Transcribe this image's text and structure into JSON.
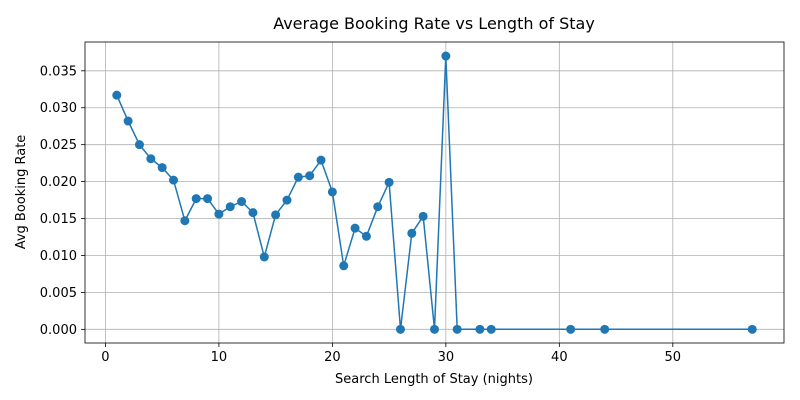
{
  "chart_data": {
    "type": "line",
    "title": "Average Booking Rate vs Length of Stay",
    "xlabel": "Search Length of Stay (nights)",
    "ylabel": "Avg Booking Rate",
    "xlim": [
      -1.8,
      59.8
    ],
    "ylim": [
      -0.00185,
      0.0389
    ],
    "xticks": [
      0,
      10,
      20,
      30,
      40,
      50
    ],
    "xtick_labels": [
      "0",
      "10",
      "20",
      "30",
      "40",
      "50"
    ],
    "yticks": [
      0.0,
      0.005,
      0.01,
      0.015,
      0.02,
      0.025,
      0.03,
      0.035
    ],
    "ytick_labels": [
      "0.000",
      "0.005",
      "0.010",
      "0.015",
      "0.020",
      "0.025",
      "0.030",
      "0.035"
    ],
    "grid": true,
    "marker": "circle",
    "colors": {
      "series": "#1f77b4"
    },
    "series": [
      {
        "x": [
          1,
          2,
          3,
          4,
          5,
          6,
          7,
          8,
          9,
          10,
          11,
          12,
          13,
          14,
          15,
          16,
          17,
          18,
          19,
          20,
          21,
          22,
          23,
          24,
          25,
          26,
          27,
          28,
          29,
          30,
          31,
          33,
          34,
          41,
          44,
          57
        ],
        "y": [
          0.0317,
          0.0282,
          0.025,
          0.0231,
          0.0219,
          0.0202,
          0.0147,
          0.0177,
          0.0177,
          0.0156,
          0.0166,
          0.0173,
          0.0158,
          0.0098,
          0.0155,
          0.0175,
          0.0206,
          0.0208,
          0.0229,
          0.0186,
          0.0086,
          0.0137,
          0.0126,
          0.0166,
          0.0199,
          0.0,
          0.013,
          0.0153,
          0.0,
          0.037,
          0.0,
          0.0,
          0.0,
          0.0,
          0.0,
          0.0
        ]
      }
    ]
  }
}
